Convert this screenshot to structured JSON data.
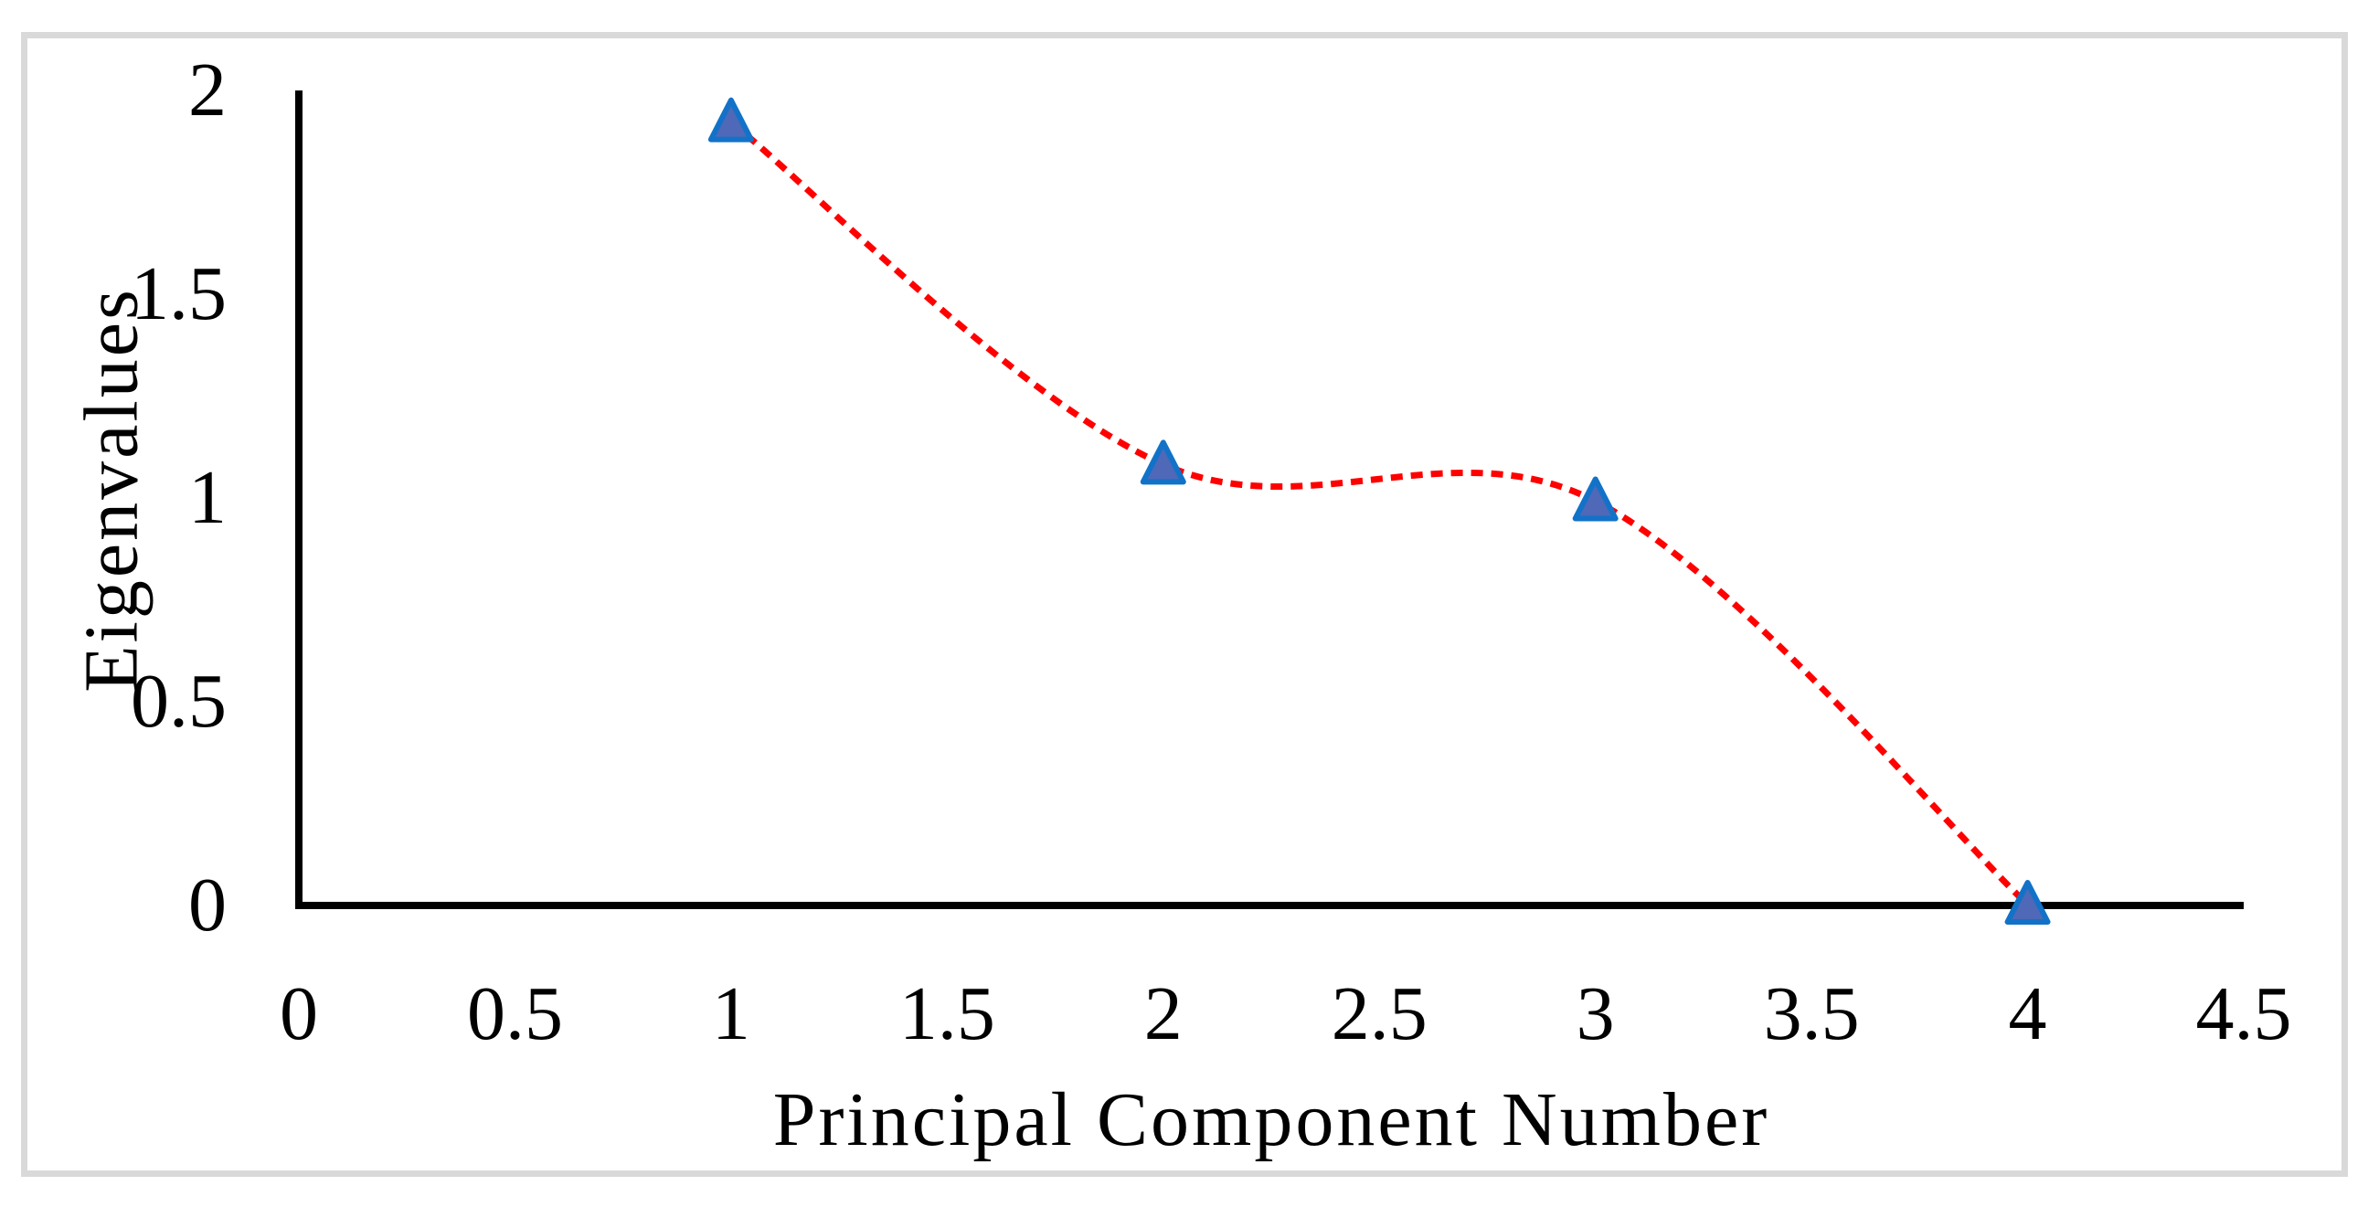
{
  "figure": {
    "background_color": "#ffffff",
    "border_color": "#d9d9d9",
    "axis_color": "#000000",
    "text_color": "#000000"
  },
  "chart_data": {
    "type": "line",
    "title": "",
    "xlabel": "Principal Component Number",
    "ylabel": "Eigenvalues",
    "x": [
      1,
      2,
      3,
      4
    ],
    "series": [
      {
        "name": "Eigenvalues",
        "values": [
          1.92,
          1.08,
          0.99,
          0.0
        ]
      }
    ],
    "xlim": [
      0,
      4.5
    ],
    "ylim": [
      0,
      2
    ],
    "x_ticks": [
      "0",
      "0.5",
      "1",
      "1.5",
      "2",
      "2.5",
      "3",
      "3.5",
      "4",
      "4.5"
    ],
    "y_ticks": [
      "0",
      "0.5",
      "1",
      "1.5",
      "2"
    ],
    "grid": false,
    "legend": "none",
    "line_color": "#ff0000",
    "line_style": "dashed",
    "line_smoothed": true,
    "marker": "triangle-up",
    "marker_fill": "#4f68b8",
    "marker_stroke": "#1272c8"
  }
}
